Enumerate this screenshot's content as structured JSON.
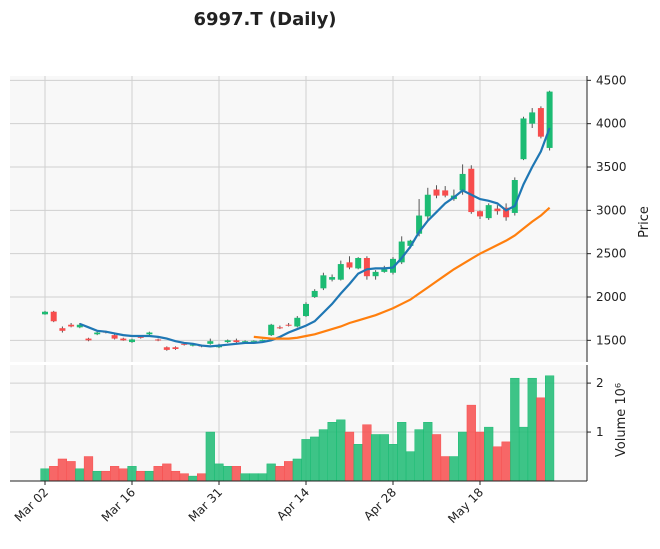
{
  "chart_data": {
    "type": "candlestick",
    "title": "6997.T (Daily)",
    "ylabel": "Price",
    "volume_label": "Volume  10⁶",
    "categories": [
      "Mar 02",
      null,
      null,
      null,
      null,
      null,
      null,
      null,
      null,
      null,
      "Mar 16",
      null,
      null,
      null,
      null,
      null,
      null,
      null,
      null,
      null,
      "Mar 31",
      null,
      null,
      null,
      null,
      null,
      null,
      null,
      null,
      null,
      "Apr 14",
      null,
      null,
      null,
      null,
      null,
      null,
      null,
      null,
      null,
      "Apr 28",
      null,
      null,
      null,
      null,
      null,
      null,
      null,
      null,
      null,
      "May 18",
      null,
      null,
      null,
      null,
      null,
      null,
      null,
      null
    ],
    "open": [
      1800,
      1830,
      1640,
      1680,
      1650,
      1520,
      1570,
      1600,
      1560,
      1520,
      1480,
      1540,
      1570,
      1510,
      1420,
      1420,
      1460,
      1440,
      1440,
      1460,
      1420,
      1480,
      1500,
      1480,
      1490,
      1500,
      1560,
      1650,
      1680,
      1660,
      1780,
      2000,
      2100,
      2200,
      2200,
      2400,
      2330,
      2450,
      2240,
      2290,
      2280,
      2400,
      2590,
      2730,
      2930,
      3240,
      3230,
      3130,
      3230,
      3480,
      2990,
      2910,
      3020,
      3030,
      2970,
      3590,
      4000,
      4180,
      3720
    ],
    "high": [
      1840,
      1840,
      1660,
      1700,
      1700,
      1530,
      1600,
      1610,
      1580,
      1530,
      1520,
      1560,
      1600,
      1520,
      1430,
      1430,
      1470,
      1460,
      1450,
      1520,
      1460,
      1510,
      1520,
      1500,
      1500,
      1510,
      1690,
      1670,
      1700,
      1780,
      1940,
      2090,
      2280,
      2260,
      2420,
      2470,
      2460,
      2470,
      2310,
      2360,
      2460,
      2700,
      2660,
      3130,
      3260,
      3290,
      3280,
      3240,
      3530,
      3520,
      3000,
      3080,
      3060,
      3080,
      3380,
      4080,
      4180,
      4200,
      4380
    ],
    "low": [
      1795,
      1710,
      1590,
      1650,
      1640,
      1490,
      1560,
      1580,
      1510,
      1495,
      1470,
      1520,
      1560,
      1490,
      1380,
      1390,
      1440,
      1430,
      1420,
      1450,
      1410,
      1470,
      1470,
      1475,
      1485,
      1495,
      1550,
      1630,
      1660,
      1650,
      1770,
      1990,
      2080,
      2180,
      2190,
      2320,
      2320,
      2200,
      2200,
      2280,
      2260,
      2380,
      2560,
      2700,
      2880,
      3140,
      3150,
      3110,
      3180,
      2960,
      2900,
      2890,
      2950,
      2880,
      2940,
      3580,
      3950,
      3830,
      3690
    ],
    "close": [
      1830,
      1720,
      1610,
      1660,
      1680,
      1500,
      1590,
      1590,
      1520,
      1500,
      1510,
      1530,
      1590,
      1500,
      1390,
      1400,
      1450,
      1450,
      1430,
      1490,
      1440,
      1500,
      1480,
      1490,
      1495,
      1505,
      1680,
      1640,
      1670,
      1760,
      1920,
      2070,
      2250,
      2230,
      2380,
      2340,
      2450,
      2240,
      2290,
      2320,
      2440,
      2640,
      2650,
      2940,
      3180,
      3170,
      3170,
      3170,
      3420,
      2980,
      2930,
      3060,
      2990,
      2920,
      3350,
      4060,
      4130,
      3850,
      4370
    ],
    "volume": [
      0.25,
      0.3,
      0.45,
      0.4,
      0.25,
      0.5,
      0.2,
      0.2,
      0.3,
      0.25,
      0.3,
      0.2,
      0.2,
      0.3,
      0.35,
      0.2,
      0.15,
      0.1,
      0.15,
      1.0,
      0.35,
      0.3,
      0.3,
      0.15,
      0.15,
      0.15,
      0.35,
      0.3,
      0.4,
      0.45,
      0.85,
      0.9,
      1.05,
      1.2,
      1.25,
      1.0,
      0.75,
      1.15,
      0.95,
      0.95,
      0.75,
      1.2,
      0.6,
      1.05,
      1.2,
      0.95,
      0.5,
      0.5,
      1.0,
      1.55,
      1.0,
      1.1,
      0.7,
      0.8,
      2.1,
      1.1,
      2.1,
      1.7,
      2.15
    ],
    "up_color": "#1cbb73",
    "down_color": "#f74d4d",
    "series": [
      {
        "color": "#1f77b4",
        "values": [
          null,
          null,
          null,
          null,
          1690,
          1650,
          1610,
          1600,
          1580,
          1560,
          1550,
          1550,
          1550,
          1540,
          1520,
          1490,
          1470,
          1460,
          1440,
          1430,
          1440,
          1450,
          1460,
          1470,
          1470,
          1480,
          1500,
          1540,
          1590,
          1630,
          1670,
          1720,
          1820,
          1920,
          2040,
          2150,
          2270,
          2320,
          2330,
          2330,
          2340,
          2450,
          2580,
          2750,
          2880,
          2980,
          3080,
          3150,
          3230,
          3180,
          3130,
          3110,
          3080,
          3000,
          3050,
          3300,
          3500,
          3680,
          3950
        ]
      },
      {
        "color": "#ff7f0e",
        "values": [
          null,
          null,
          null,
          null,
          null,
          null,
          null,
          null,
          null,
          null,
          null,
          null,
          null,
          null,
          null,
          null,
          null,
          null,
          null,
          null,
          null,
          null,
          null,
          null,
          1540,
          1530,
          1520,
          1520,
          1520,
          1530,
          1550,
          1570,
          1600,
          1630,
          1660,
          1700,
          1730,
          1760,
          1790,
          1830,
          1870,
          1920,
          1970,
          2040,
          2110,
          2180,
          2250,
          2320,
          2380,
          2440,
          2500,
          2550,
          2600,
          2650,
          2710,
          2790,
          2870,
          2940,
          3030
        ]
      }
    ],
    "ylim": [
      1250,
      4550
    ],
    "yticks": [
      1500,
      2000,
      2500,
      3000,
      3500,
      4000,
      4500
    ],
    "volume_ylim": [
      0,
      2.37
    ],
    "volume_yticks": [
      1,
      2
    ],
    "grid": true
  }
}
